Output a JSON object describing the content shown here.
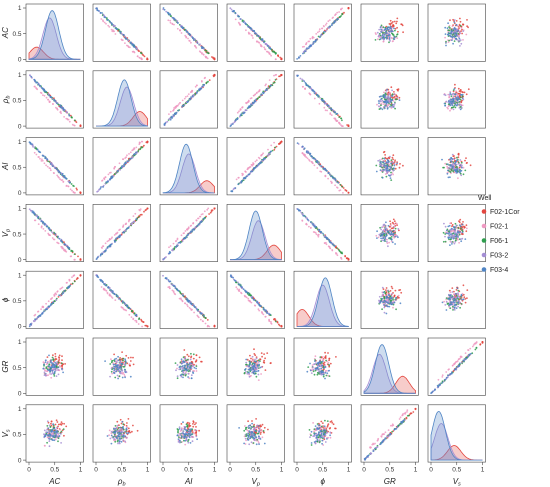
{
  "chart_data": {
    "type": "scatter",
    "kind": "pair-plot matrix",
    "variables": [
      {
        "key": "AC",
        "label": "AC"
      },
      {
        "key": "rho",
        "label": "ρ",
        "sub": "b"
      },
      {
        "key": "AI",
        "label": "AI"
      },
      {
        "key": "Vp",
        "label": "V",
        "sub": "p"
      },
      {
        "key": "phi",
        "label": "ϕ"
      },
      {
        "key": "GR",
        "label": "GR"
      },
      {
        "key": "Vs",
        "label": "V",
        "sub": "s"
      }
    ],
    "axis_range": [
      0,
      1
    ],
    "tick_values": [
      0,
      0.5,
      1
    ],
    "tick_labels": [
      "0",
      "0.5",
      "1"
    ],
    "diagonal": "kde",
    "off_diagonal": "scatter",
    "legend": {
      "title": "Well",
      "placement": "right",
      "series": [
        {
          "name": "F02-1Cor",
          "color": "#e3473f"
        },
        {
          "name": "F02-1",
          "color": "#ef9ac2"
        },
        {
          "name": "F06-1",
          "color": "#2f9e4e"
        },
        {
          "name": "F03-2",
          "color": "#a48ed4"
        },
        {
          "name": "F03-4",
          "color": "#4f84c4"
        }
      ]
    },
    "linear_relations": {
      "AC|rho": -1,
      "AC|AI": -1,
      "AC|Vp": -1,
      "AC|phi": 1,
      "rho|AI": 1,
      "rho|Vp": 1,
      "rho|phi": -1,
      "AI|Vp": 1,
      "AI|phi": -1,
      "Vp|phi": -1,
      "GR|Vs": 1
    },
    "kde_peaks": {
      "AC": [
        {
          "series": "F03-4",
          "mode": 0.45,
          "height": 1.0
        },
        {
          "series": "F03-2",
          "mode": 0.4,
          "height": 0.85
        },
        {
          "series": "F02-1Cor",
          "mode": 0.15,
          "height": 0.25
        }
      ],
      "rho": [
        {
          "series": "F03-4",
          "mode": 0.55,
          "height": 0.95
        },
        {
          "series": "F03-2",
          "mode": 0.6,
          "height": 0.8
        },
        {
          "series": "F02-1Cor",
          "mode": 0.85,
          "height": 0.3
        }
      ],
      "AI": [
        {
          "series": "F03-4",
          "mode": 0.45,
          "height": 1.0
        },
        {
          "series": "F03-2",
          "mode": 0.5,
          "height": 0.8
        },
        {
          "series": "F02-1Cor",
          "mode": 0.85,
          "height": 0.25
        }
      ],
      "Vp": [
        {
          "series": "F03-4",
          "mode": 0.5,
          "height": 1.0
        },
        {
          "series": "F03-2",
          "mode": 0.55,
          "height": 0.8
        },
        {
          "series": "F02-1Cor",
          "mode": 0.85,
          "height": 0.3
        }
      ],
      "phi": [
        {
          "series": "F03-4",
          "mode": 0.55,
          "height": 1.0
        },
        {
          "series": "F03-2",
          "mode": 0.5,
          "height": 0.85
        },
        {
          "series": "F02-1Cor",
          "mode": 0.1,
          "height": 0.35
        }
      ],
      "GR": [
        {
          "series": "F03-4",
          "mode": 0.35,
          "height": 1.0
        },
        {
          "series": "F03-2",
          "mode": 0.3,
          "height": 0.8
        },
        {
          "series": "F02-1Cor",
          "mode": 0.75,
          "height": 0.35
        }
      ],
      "Vs": [
        {
          "series": "F03-4",
          "mode": 0.15,
          "height": 1.0
        },
        {
          "series": "F03-2",
          "mode": 0.2,
          "height": 0.75
        },
        {
          "series": "F02-1Cor",
          "mode": 0.45,
          "height": 0.3
        }
      ]
    }
  }
}
